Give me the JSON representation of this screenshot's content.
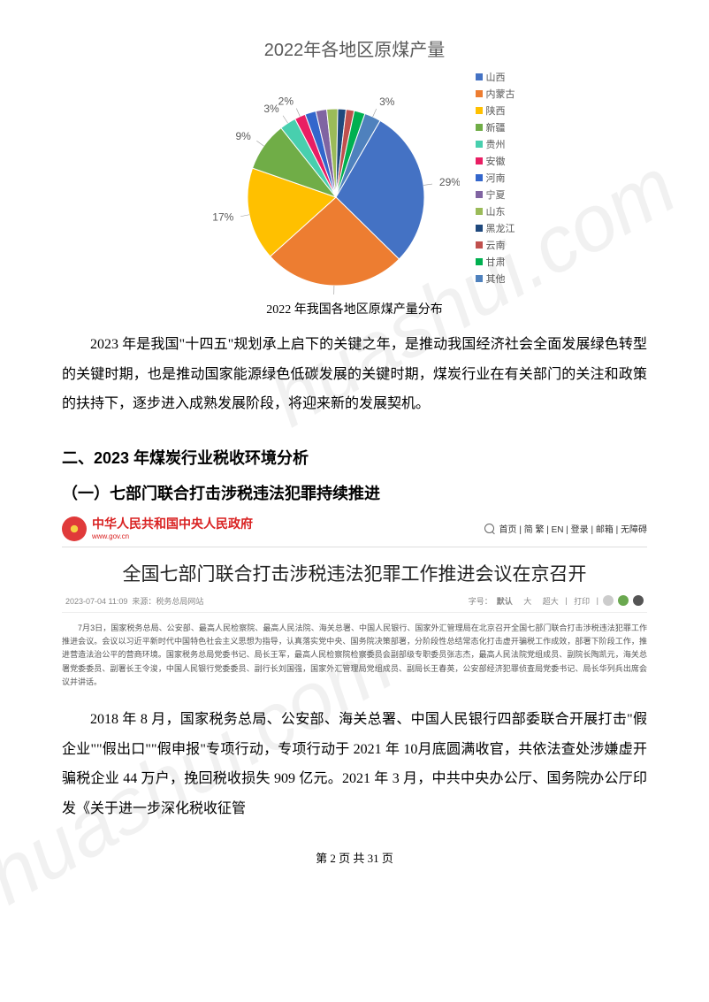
{
  "watermark": "huashui.com",
  "chart": {
    "type": "pie",
    "title": "2022年各地区原煤产量",
    "title_fontsize": 20,
    "title_color": "#595959",
    "caption": "2022 年我国各地区原煤产量分布",
    "background_color": "#ffffff",
    "start_angle_deg": -60,
    "slices": [
      {
        "label": "山西",
        "value": 29,
        "color": "#4472c4",
        "show_pct": true
      },
      {
        "label": "内蒙古",
        "value": 26,
        "color": "#ed7d31",
        "show_pct": true
      },
      {
        "label": "陕西",
        "value": 17,
        "color": "#ffc000",
        "show_pct": true
      },
      {
        "label": "新疆",
        "value": 9,
        "color": "#70ad47",
        "show_pct": true
      },
      {
        "label": "贵州",
        "value": 3,
        "color": "#48cfae",
        "show_pct": true
      },
      {
        "label": "安徽",
        "value": 2,
        "color": "#e91e63",
        "show_pct": true
      },
      {
        "label": "河南",
        "value": 2,
        "color": "#3366cc",
        "show_pct": false
      },
      {
        "label": "宁夏",
        "value": 2,
        "color": "#8064a2",
        "show_pct": false
      },
      {
        "label": "山东",
        "value": 2,
        "color": "#9bbb59",
        "show_pct": false
      },
      {
        "label": "黑龙江",
        "value": 1.5,
        "color": "#1f497d",
        "show_pct": false
      },
      {
        "label": "云南",
        "value": 1.5,
        "color": "#c0504d",
        "show_pct": false
      },
      {
        "label": "甘肃",
        "value": 2,
        "color": "#00b050",
        "show_pct": false
      },
      {
        "label": "其他",
        "value": 3,
        "color": "#4f81bd",
        "show_pct": true
      }
    ],
    "label_fontsize": 12,
    "legend_fontsize": 11,
    "pie_radius": 100,
    "explode_last": 0
  },
  "para1": "2023 年是我国\"十四五\"规划承上启下的关键之年，是推动我国经济社会全面发展绿色转型的关键时期，也是推动国家能源绿色低碳发展的关键时期，煤炭行业在有关部门的关注和政策的扶持下，逐步进入成熟发展阶段，将迎来新的发展契机。",
  "section2_title": "二、2023 年煤炭行业税收环境分析",
  "section2_sub1": "（一）七部门联合打击涉税违法犯罪持续推进",
  "gov": {
    "name": "中华人民共和国中央人民政府",
    "url": "www.gov.cn",
    "nav": [
      "首页",
      "|",
      "简",
      "繁",
      "|",
      "EN",
      "|",
      "登录",
      "|",
      "邮箱",
      "|",
      "无障碍"
    ],
    "article_title": "全国七部门联合打击涉税违法犯罪工作推进会议在京召开",
    "date": "2023-07-04 11:09",
    "source": "来源：税务总局网站",
    "font_label": "字号：",
    "font_default": "默认",
    "font_big": "大",
    "font_huge": "超大",
    "print": "打印",
    "body": "7月3日，国家税务总局、公安部、最高人民检察院、最高人民法院、海关总署、中国人民银行、国家外汇管理局在北京召开全国七部门联合打击涉税违法犯罪工作推进会议。会议以习近平新时代中国特色社会主义思想为指导，认真落实党中央、国务院决策部署，分阶段性总结常态化打击虚开骗税工作成效，部署下阶段工作，推进营造法治公平的营商环境。国家税务总局党委书记、局长王军，最高人民检察院检察委员会副部级专职委员张志杰，最高人民法院党组成员、副院长陶凯元，海关总署党委委员、副署长王令浚，中国人民银行党委委员、副行长刘国强，国家外汇管理局党组成员、副局长王春英，公安部经济犯罪侦查局党委书记、局长华列兵出席会议并讲话。"
  },
  "para2": "2018 年 8 月，国家税务总局、公安部、海关总署、中国人民银行四部委联合开展打击\"假企业\"\"假出口\"\"假申报\"专项行动，专项行动于 2021 年 10月底圆满收官，共依法查处涉嫌虚开骗税企业 44 万户，挽回税收损失 909 亿元。2021 年 3 月，中共中央办公厅、国务院办公厅印发《关于进一步深化税收征管",
  "page_footer": "第 2 页 共 31 页"
}
